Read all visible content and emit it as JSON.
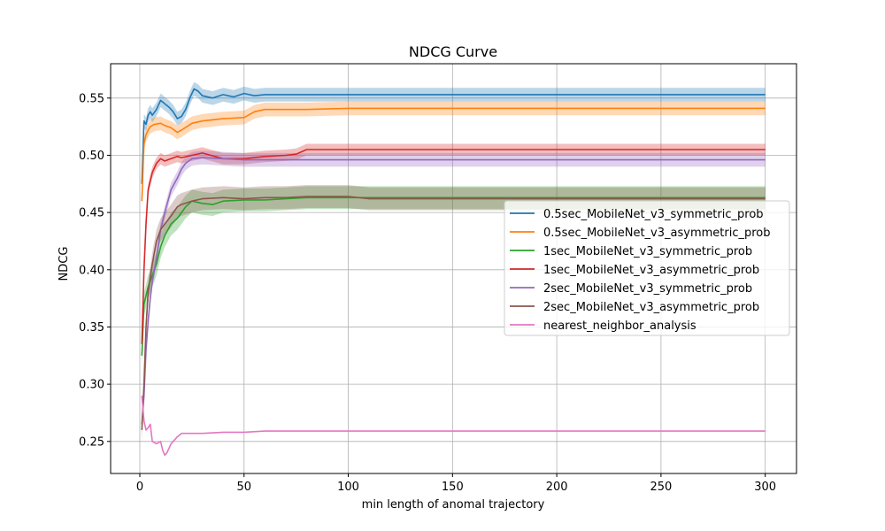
{
  "chart_data": {
    "type": "line",
    "title": "NDCG Curve",
    "xlabel": "min length of anomal trajectory",
    "ylabel": "NDCG",
    "xlim": [
      -14,
      315
    ],
    "ylim": [
      0.222,
      0.58
    ],
    "xticks": [
      0,
      50,
      100,
      150,
      200,
      250,
      300
    ],
    "yticks": [
      0.25,
      0.3,
      0.35,
      0.4,
      0.45,
      0.5,
      0.55
    ],
    "ytick_labels": [
      "0.25",
      "0.30",
      "0.35",
      "0.40",
      "0.45",
      "0.50",
      "0.55"
    ],
    "grid": true,
    "legend_position": "center-right",
    "series": [
      {
        "name": "0.5sec_MobileNet_v3_symmetric_prob",
        "color": "#1f77b4",
        "band": 0.006,
        "points": [
          [
            1,
            0.475
          ],
          [
            2,
            0.53
          ],
          [
            3,
            0.527
          ],
          [
            4,
            0.535
          ],
          [
            5,
            0.538
          ],
          [
            6,
            0.535
          ],
          [
            8,
            0.54
          ],
          [
            10,
            0.548
          ],
          [
            12,
            0.545
          ],
          [
            14,
            0.542
          ],
          [
            16,
            0.538
          ],
          [
            18,
            0.532
          ],
          [
            20,
            0.534
          ],
          [
            22,
            0.54
          ],
          [
            24,
            0.55
          ],
          [
            26,
            0.558
          ],
          [
            28,
            0.556
          ],
          [
            30,
            0.552
          ],
          [
            35,
            0.55
          ],
          [
            40,
            0.553
          ],
          [
            45,
            0.551
          ],
          [
            50,
            0.554
          ],
          [
            55,
            0.552
          ],
          [
            60,
            0.553
          ],
          [
            70,
            0.553
          ],
          [
            100,
            0.553
          ],
          [
            150,
            0.553
          ],
          [
            200,
            0.553
          ],
          [
            250,
            0.553
          ],
          [
            300,
            0.553
          ]
        ]
      },
      {
        "name": "0.5sec_MobileNet_v3_asymmetric_prob",
        "color": "#ff7f0e",
        "band": 0.006,
        "points": [
          [
            1,
            0.46
          ],
          [
            2,
            0.51
          ],
          [
            3,
            0.518
          ],
          [
            4,
            0.522
          ],
          [
            5,
            0.525
          ],
          [
            7,
            0.527
          ],
          [
            10,
            0.528
          ],
          [
            12,
            0.526
          ],
          [
            15,
            0.524
          ],
          [
            18,
            0.52
          ],
          [
            20,
            0.522
          ],
          [
            25,
            0.528
          ],
          [
            30,
            0.53
          ],
          [
            40,
            0.532
          ],
          [
            50,
            0.533
          ],
          [
            55,
            0.538
          ],
          [
            60,
            0.54
          ],
          [
            70,
            0.54
          ],
          [
            80,
            0.54
          ],
          [
            100,
            0.541
          ],
          [
            150,
            0.541
          ],
          [
            200,
            0.541
          ],
          [
            250,
            0.541
          ],
          [
            300,
            0.541
          ]
        ]
      },
      {
        "name": "1sec_MobileNet_v3_symmetric_prob",
        "color": "#2ca02c",
        "band": 0.01,
        "points": [
          [
            1,
            0.325
          ],
          [
            2,
            0.37
          ],
          [
            4,
            0.385
          ],
          [
            6,
            0.395
          ],
          [
            8,
            0.405
          ],
          [
            10,
            0.42
          ],
          [
            12,
            0.43
          ],
          [
            15,
            0.44
          ],
          [
            18,
            0.445
          ],
          [
            20,
            0.45
          ],
          [
            22,
            0.455
          ],
          [
            25,
            0.46
          ],
          [
            30,
            0.458
          ],
          [
            35,
            0.457
          ],
          [
            40,
            0.46
          ],
          [
            50,
            0.461
          ],
          [
            60,
            0.461
          ],
          [
            70,
            0.462
          ],
          [
            80,
            0.463
          ],
          [
            100,
            0.463
          ],
          [
            150,
            0.463
          ],
          [
            200,
            0.463
          ],
          [
            250,
            0.463
          ],
          [
            300,
            0.463
          ]
        ]
      },
      {
        "name": "1sec_MobileNet_v3_asymmetric_prob",
        "color": "#d62728",
        "band": 0.005,
        "points": [
          [
            1,
            0.335
          ],
          [
            2,
            0.4
          ],
          [
            3,
            0.44
          ],
          [
            4,
            0.47
          ],
          [
            6,
            0.485
          ],
          [
            8,
            0.493
          ],
          [
            10,
            0.497
          ],
          [
            12,
            0.495
          ],
          [
            15,
            0.497
          ],
          [
            18,
            0.499
          ],
          [
            20,
            0.498
          ],
          [
            25,
            0.5
          ],
          [
            30,
            0.502
          ],
          [
            40,
            0.497
          ],
          [
            50,
            0.497
          ],
          [
            60,
            0.499
          ],
          [
            70,
            0.5
          ],
          [
            75,
            0.501
          ],
          [
            80,
            0.505
          ],
          [
            100,
            0.505
          ],
          [
            150,
            0.505
          ],
          [
            200,
            0.505
          ],
          [
            250,
            0.505
          ],
          [
            300,
            0.505
          ]
        ]
      },
      {
        "name": "2sec_MobileNet_v3_symmetric_prob",
        "color": "#9467bd",
        "band": 0.006,
        "points": [
          [
            1,
            0.265
          ],
          [
            2,
            0.29
          ],
          [
            3,
            0.33
          ],
          [
            4,
            0.355
          ],
          [
            5,
            0.375
          ],
          [
            6,
            0.39
          ],
          [
            8,
            0.41
          ],
          [
            10,
            0.435
          ],
          [
            12,
            0.45
          ],
          [
            15,
            0.47
          ],
          [
            18,
            0.48
          ],
          [
            20,
            0.488
          ],
          [
            22,
            0.493
          ],
          [
            25,
            0.497
          ],
          [
            30,
            0.498
          ],
          [
            40,
            0.497
          ],
          [
            50,
            0.496
          ],
          [
            60,
            0.496
          ],
          [
            80,
            0.496
          ],
          [
            100,
            0.496
          ],
          [
            150,
            0.496
          ],
          [
            200,
            0.496
          ],
          [
            250,
            0.496
          ],
          [
            300,
            0.496
          ]
        ]
      },
      {
        "name": "2sec_MobileNet_v3_asymmetric_prob",
        "color": "#8c564b",
        "band": 0.01,
        "points": [
          [
            1,
            0.26
          ],
          [
            2,
            0.3
          ],
          [
            3,
            0.35
          ],
          [
            4,
            0.38
          ],
          [
            6,
            0.405
          ],
          [
            8,
            0.425
          ],
          [
            10,
            0.435
          ],
          [
            12,
            0.44
          ],
          [
            15,
            0.447
          ],
          [
            18,
            0.455
          ],
          [
            20,
            0.457
          ],
          [
            25,
            0.46
          ],
          [
            30,
            0.462
          ],
          [
            40,
            0.463
          ],
          [
            50,
            0.462
          ],
          [
            60,
            0.463
          ],
          [
            70,
            0.463
          ],
          [
            80,
            0.464
          ],
          [
            100,
            0.464
          ],
          [
            110,
            0.462
          ],
          [
            150,
            0.462
          ],
          [
            200,
            0.462
          ],
          [
            250,
            0.462
          ],
          [
            300,
            0.462
          ]
        ]
      },
      {
        "name": "nearest_neighbor_analysis",
        "color": "#e377c2",
        "band": 0.0,
        "points": [
          [
            1,
            0.29
          ],
          [
            2,
            0.268
          ],
          [
            3,
            0.26
          ],
          [
            4,
            0.262
          ],
          [
            5,
            0.265
          ],
          [
            6,
            0.25
          ],
          [
            8,
            0.248
          ],
          [
            10,
            0.25
          ],
          [
            11,
            0.242
          ],
          [
            12,
            0.238
          ],
          [
            13,
            0.24
          ],
          [
            15,
            0.248
          ],
          [
            18,
            0.254
          ],
          [
            20,
            0.257
          ],
          [
            25,
            0.257
          ],
          [
            30,
            0.257
          ],
          [
            40,
            0.258
          ],
          [
            50,
            0.258
          ],
          [
            60,
            0.259
          ],
          [
            100,
            0.259
          ],
          [
            150,
            0.259
          ],
          [
            200,
            0.259
          ],
          [
            250,
            0.259
          ],
          [
            300,
            0.259
          ]
        ]
      }
    ]
  }
}
